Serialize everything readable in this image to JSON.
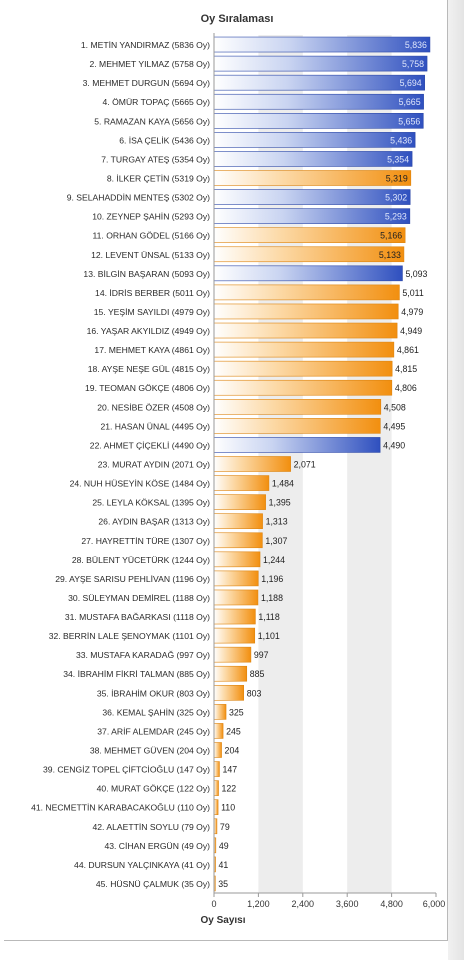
{
  "chart_data": {
    "type": "bar",
    "orientation": "horizontal",
    "title": "Oy Sıralaması",
    "xlabel": "Oy Sayısı",
    "ylabel": "",
    "xlim": [
      0,
      6000
    ],
    "xticks": [
      "0",
      "1,200",
      "2,400",
      "3,600",
      "4,800",
      "6,000"
    ],
    "colors": {
      "blue": "#3b5fc8",
      "orange": "#f59a1c"
    },
    "bars": [
      {
        "label": "1. METİN YANDIRMAZ (5836 Oy)",
        "value": 5836,
        "value_label": "5,836",
        "color": "blue"
      },
      {
        "label": "2. MEHMET YILMAZ (5758 Oy)",
        "value": 5758,
        "value_label": "5,758",
        "color": "blue"
      },
      {
        "label": "3. MEHMET DURGUN (5694 Oy)",
        "value": 5694,
        "value_label": "5,694",
        "color": "blue"
      },
      {
        "label": "4. ÖMÜR TOPAÇ (5665 Oy)",
        "value": 5665,
        "value_label": "5,665",
        "color": "blue"
      },
      {
        "label": "5. RAMAZAN KAYA (5656 Oy)",
        "value": 5656,
        "value_label": "5,656",
        "color": "blue"
      },
      {
        "label": "6. İSA ÇELİK (5436 Oy)",
        "value": 5436,
        "value_label": "5,436",
        "color": "blue"
      },
      {
        "label": "7. TURGAY ATEŞ (5354 Oy)",
        "value": 5354,
        "value_label": "5,354",
        "color": "blue"
      },
      {
        "label": "8. İLKER ÇETİN (5319 Oy)",
        "value": 5319,
        "value_label": "5,319",
        "color": "orange"
      },
      {
        "label": "9. SELAHADDİN MENTEŞ (5302 Oy)",
        "value": 5302,
        "value_label": "5,302",
        "color": "blue"
      },
      {
        "label": "10. ZEYNEP ŞAHİN (5293 Oy)",
        "value": 5293,
        "value_label": "5,293",
        "color": "blue"
      },
      {
        "label": "11. ORHAN GÖDEL (5166 Oy)",
        "value": 5166,
        "value_label": "5,166",
        "color": "orange"
      },
      {
        "label": "12. LEVENT ÜNSAL (5133 Oy)",
        "value": 5133,
        "value_label": "5,133",
        "color": "orange"
      },
      {
        "label": "13. BİLGİN BAŞARAN (5093 Oy)",
        "value": 5093,
        "value_label": "5,093",
        "color": "blue"
      },
      {
        "label": "14. İDRİS BERBER (5011 Oy)",
        "value": 5011,
        "value_label": "5,011",
        "color": "orange"
      },
      {
        "label": "15. YEŞİM SAYILDI (4979 Oy)",
        "value": 4979,
        "value_label": "4,979",
        "color": "orange"
      },
      {
        "label": "16. YAŞAR AKYILDIZ (4949 Oy)",
        "value": 4949,
        "value_label": "4,949",
        "color": "orange"
      },
      {
        "label": "17. MEHMET KAYA (4861 Oy)",
        "value": 4861,
        "value_label": "4,861",
        "color": "orange"
      },
      {
        "label": "18. AYŞE NEŞE GÜL (4815 Oy)",
        "value": 4815,
        "value_label": "4,815",
        "color": "orange"
      },
      {
        "label": "19. TEOMAN GÖKÇE (4806 Oy)",
        "value": 4806,
        "value_label": "4,806",
        "color": "orange"
      },
      {
        "label": "20. NESİBE ÖZER (4508 Oy)",
        "value": 4508,
        "value_label": "4,508",
        "color": "orange"
      },
      {
        "label": "21. HASAN ÜNAL (4495 Oy)",
        "value": 4495,
        "value_label": "4,495",
        "color": "orange"
      },
      {
        "label": "22. AHMET ÇİÇEKLİ (4490 Oy)",
        "value": 4490,
        "value_label": "4,490",
        "color": "blue"
      },
      {
        "label": "23. MURAT AYDIN (2071 Oy)",
        "value": 2071,
        "value_label": "2,071",
        "color": "orange"
      },
      {
        "label": "24. NUH HÜSEYİN KÖSE (1484 Oy)",
        "value": 1484,
        "value_label": "1,484",
        "color": "orange"
      },
      {
        "label": "25. LEYLA KÖKSAL (1395 Oy)",
        "value": 1395,
        "value_label": "1,395",
        "color": "orange"
      },
      {
        "label": "26. AYDIN BAŞAR (1313 Oy)",
        "value": 1313,
        "value_label": "1,313",
        "color": "orange"
      },
      {
        "label": "27. HAYRETTİN TÜRE (1307 Oy)",
        "value": 1307,
        "value_label": "1,307",
        "color": "orange"
      },
      {
        "label": "28. BÜLENT YÜCETÜRK (1244 Oy)",
        "value": 1244,
        "value_label": "1,244",
        "color": "orange"
      },
      {
        "label": "29. AYŞE SARISU PEHLİVAN (1196 Oy)",
        "value": 1196,
        "value_label": "1,196",
        "color": "orange"
      },
      {
        "label": "30. SÜLEYMAN DEMİREL (1188 Oy)",
        "value": 1188,
        "value_label": "1,188",
        "color": "orange"
      },
      {
        "label": "31. MUSTAFA BAĞARKASI (1118 Oy)",
        "value": 1118,
        "value_label": "1,118",
        "color": "orange"
      },
      {
        "label": "32. BERRİN LALE ŞENOYMAK (1101 Oy)",
        "value": 1101,
        "value_label": "1,101",
        "color": "orange"
      },
      {
        "label": "33. MUSTAFA KARADAĞ (997 Oy)",
        "value": 997,
        "value_label": "997",
        "color": "orange"
      },
      {
        "label": "34. İBRAHİM FİKRİ TALMAN (885 Oy)",
        "value": 885,
        "value_label": "885",
        "color": "orange"
      },
      {
        "label": "35. İBRAHİM OKUR (803 Oy)",
        "value": 803,
        "value_label": "803",
        "color": "orange"
      },
      {
        "label": "36. KEMAL ŞAHİN (325 Oy)",
        "value": 325,
        "value_label": "325",
        "color": "orange"
      },
      {
        "label": "37. ARİF ALEMDAR (245 Oy)",
        "value": 245,
        "value_label": "245",
        "color": "orange"
      },
      {
        "label": "38. MEHMET GÜVEN (204 Oy)",
        "value": 204,
        "value_label": "204",
        "color": "orange"
      },
      {
        "label": "39. CENGİZ TOPEL ÇİFTCİOĞLU (147 Oy)",
        "value": 147,
        "value_label": "147",
        "color": "orange"
      },
      {
        "label": "40. MURAT GÖKÇE (122 Oy)",
        "value": 122,
        "value_label": "122",
        "color": "orange"
      },
      {
        "label": "41. NECMETTİN KARABACAKOĞLU (110 Oy)",
        "value": 110,
        "value_label": "110",
        "color": "orange"
      },
      {
        "label": "42. ALAETTİN SOYLU (79 Oy)",
        "value": 79,
        "value_label": "79",
        "color": "orange"
      },
      {
        "label": "43. CİHAN ERGÜN (49 Oy)",
        "value": 49,
        "value_label": "49",
        "color": "orange"
      },
      {
        "label": "44. DURSUN YALÇINKAYA (41 Oy)",
        "value": 41,
        "value_label": "41",
        "color": "orange"
      },
      {
        "label": "45. HÜSNÜ ÇALMUK (35 Oy)",
        "value": 35,
        "value_label": "35",
        "color": "orange"
      }
    ]
  }
}
